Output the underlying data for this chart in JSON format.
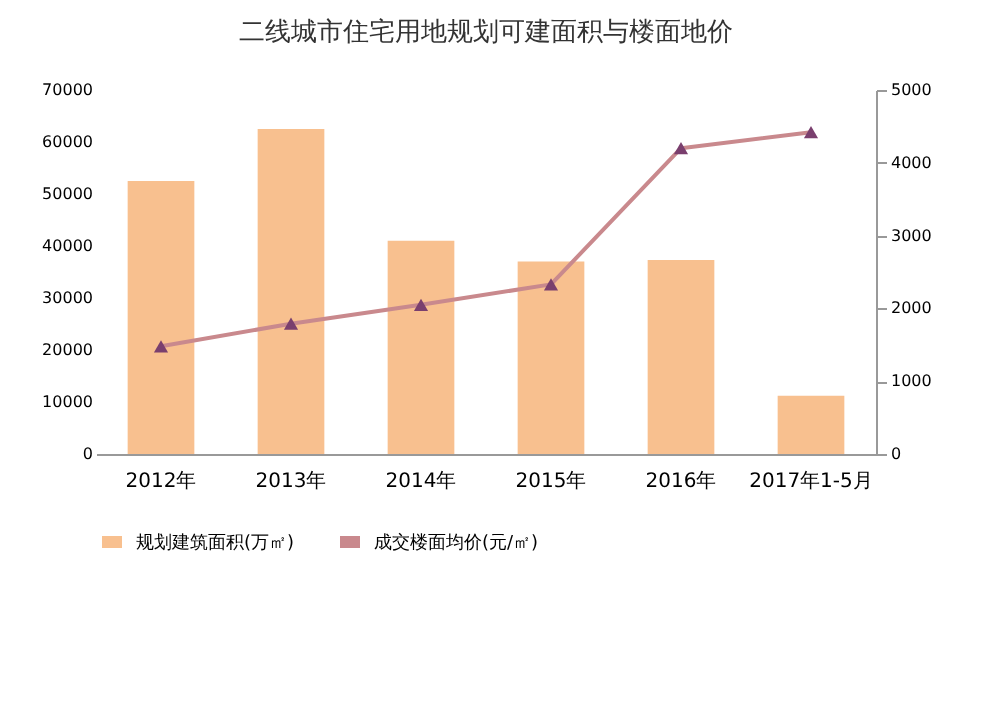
{
  "chart_data": {
    "type": "bar",
    "title": "二线城市住宅用地规划可建面积与楼面地价",
    "categories": [
      "2012年",
      "2013年",
      "2014年",
      "2015年",
      "2016年",
      "2017年1-5月"
    ],
    "series": [
      {
        "name": "规划建筑面积(万㎡)",
        "color": "#f8c08f",
        "values": [
          52500,
          62500,
          41000,
          37000,
          37300,
          11200
        ]
      },
      {
        "name": "成交楼面均价(元/㎡)",
        "type": "line",
        "axis": "y2",
        "color": "#c9898d",
        "marker": "triangle",
        "values": [
          1480,
          1790,
          2050,
          2330,
          4200,
          4420
        ]
      }
    ],
    "ylim": [
      0,
      70000
    ],
    "yticks": [
      0,
      10000,
      20000,
      30000,
      40000,
      50000,
      60000,
      70000
    ],
    "y2lim": [
      0,
      5000
    ],
    "y2ticks": [
      0,
      1000,
      2000,
      3000,
      4000,
      5000
    ],
    "grid": false,
    "legend": "bottom"
  }
}
